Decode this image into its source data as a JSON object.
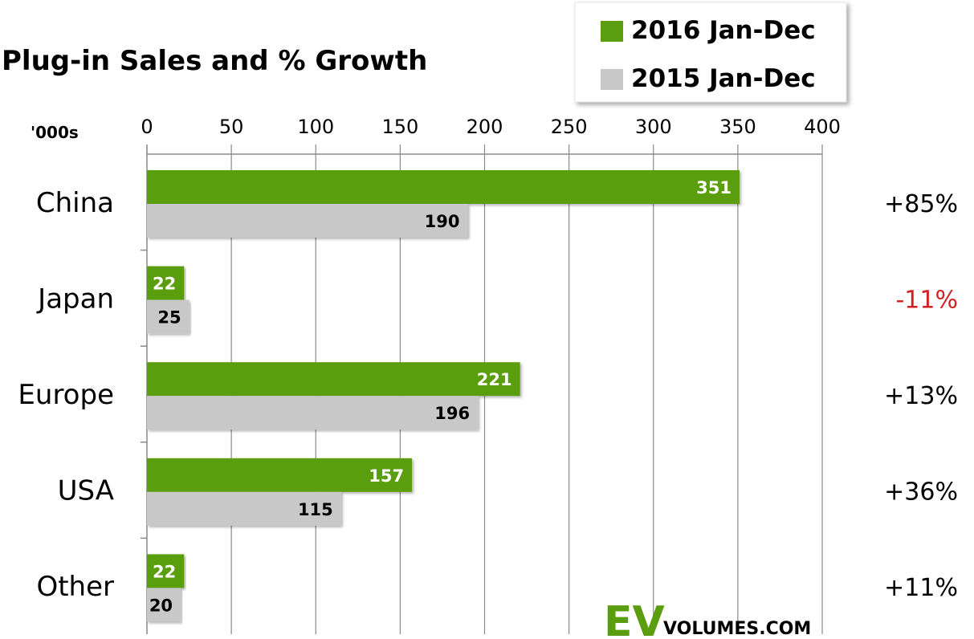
{
  "chart_data": {
    "type": "bar",
    "orientation": "horizontal",
    "title": "Plug-in Sales and % Growth",
    "units_label": "'000s",
    "categories": [
      "China",
      "Japan",
      "Europe",
      "USA",
      "Other"
    ],
    "series": [
      {
        "name": "2016 Jan-Dec",
        "color": "#5a9e10",
        "values": [
          351,
          22,
          221,
          157,
          22
        ],
        "label_color": "#ffffff"
      },
      {
        "name": "2015 Jan-Dec",
        "color": "#c8c8c8",
        "values": [
          190,
          25,
          196,
          115,
          20
        ],
        "label_color": "#000000"
      }
    ],
    "growth": [
      "+85%",
      "-11%",
      "+13%",
      "+36%",
      "+11%"
    ],
    "growth_colors": [
      "#000000",
      "#d32020",
      "#000000",
      "#000000",
      "#000000"
    ],
    "xlim": [
      0,
      400
    ],
    "xticks": [
      0,
      50,
      100,
      150,
      200,
      250,
      300,
      350,
      400
    ],
    "grid": true,
    "axis_position": "top",
    "legend_position": "top-right"
  },
  "logo": {
    "ev": "EV",
    "rest": "VOLUMES.COM",
    "ev_color": "#5a9e10"
  }
}
